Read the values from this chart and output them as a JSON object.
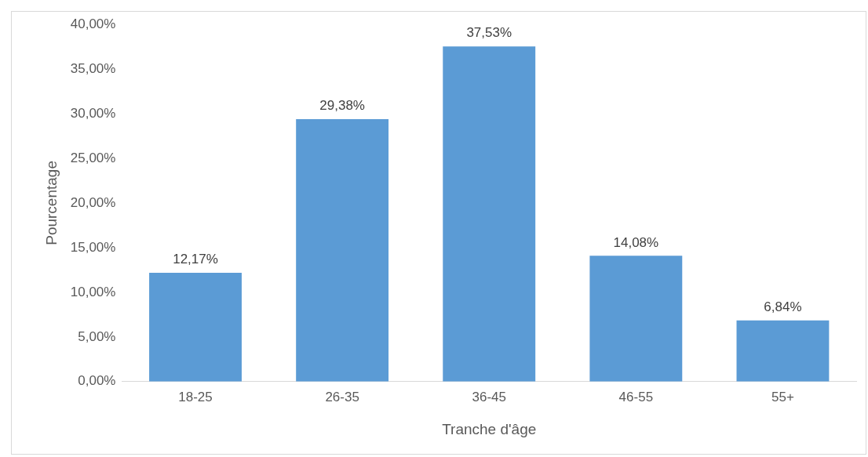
{
  "chart_data": {
    "type": "bar",
    "xlabel": "Tranche d'âge",
    "ylabel": "Pourcentage",
    "categories": [
      "18-25",
      "26-35",
      "36-45",
      "46-55",
      "55+"
    ],
    "values": [
      12.17,
      29.38,
      37.53,
      14.08,
      6.84
    ],
    "value_labels": [
      "12,17%",
      "29,38%",
      "37,53%",
      "14,08%",
      "6,84%"
    ],
    "color": "#5b9bd5",
    "ylim": [
      0,
      40
    ],
    "yticks": [
      {
        "value": 0,
        "label": "0,00%"
      },
      {
        "value": 5,
        "label": "5,00%"
      },
      {
        "value": 10,
        "label": "10,00%"
      },
      {
        "value": 15,
        "label": "15,00%"
      },
      {
        "value": 20,
        "label": "20,00%"
      },
      {
        "value": 25,
        "label": "25,00%"
      },
      {
        "value": 30,
        "label": "30,00%"
      },
      {
        "value": 35,
        "label": "35,00%"
      },
      {
        "value": 40,
        "label": "40,00%"
      }
    ],
    "grid": false,
    "legend": false
  }
}
